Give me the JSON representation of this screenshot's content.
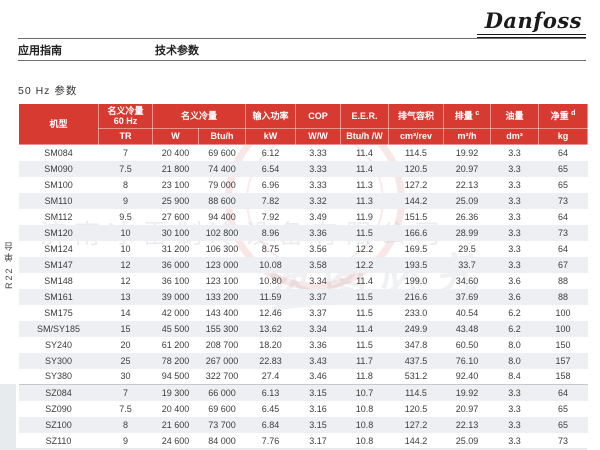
{
  "page": {
    "logo": "Danfoss",
    "nav_left": "应用指南",
    "nav_right": "技术参数",
    "section_title": "50 Hz 参数"
  },
  "watermark": {
    "company": "济南冰雷制冷设备有限公司",
    "warning": "盗图必究",
    "phone": "400-031-5128"
  },
  "table": {
    "header": {
      "model": "机型",
      "capacity60_line1": "名义冷量",
      "capacity60_line2": "60 Hz",
      "capacity": "名义冷量",
      "power": "输入功率",
      "cop": "COP",
      "eer": "E.E.R.",
      "swept_volume": "排气容积",
      "displacement": "排量",
      "displacement_note": "c",
      "oil": "油量",
      "weight": "净重",
      "weight_note": "d",
      "units": [
        "TR",
        "W",
        "Btu/h",
        "kW",
        "W/W",
        "Btu/h /W",
        "cm³/rev",
        "m³/h",
        "dm³",
        "kg"
      ]
    },
    "sections": [
      {
        "label": "R22 单台",
        "rows": [
          [
            "SM084",
            "7",
            "20 400",
            "69 600",
            "6.12",
            "3.33",
            "11.4",
            "114.5",
            "19.92",
            "3.3",
            "64"
          ],
          [
            "SM090",
            "7.5",
            "21 800",
            "74 400",
            "6.54",
            "3.33",
            "11.4",
            "120.5",
            "20.97",
            "3.3",
            "65"
          ],
          [
            "SM100",
            "8",
            "23 100",
            "79 000",
            "6.96",
            "3.33",
            "11.3",
            "127.2",
            "22.13",
            "3.3",
            "65"
          ],
          [
            "SM110",
            "9",
            "25 900",
            "88 600",
            "7.82",
            "3.32",
            "11.3",
            "144.2",
            "25.09",
            "3.3",
            "73"
          ],
          [
            "SM112",
            "9.5",
            "27 600",
            "94 400",
            "7.92",
            "3.49",
            "11.9",
            "151.5",
            "26.36",
            "3.3",
            "64"
          ],
          [
            "SM120",
            "10",
            "30 100",
            "102 800",
            "8.96",
            "3.36",
            "11.5",
            "166.6",
            "28.99",
            "3.3",
            "73"
          ],
          [
            "SM124",
            "10",
            "31 200",
            "106 300",
            "8.75",
            "3.56",
            "12.2",
            "169.5",
            "29.5",
            "3.3",
            "64"
          ],
          [
            "SM147",
            "12",
            "36 000",
            "123 000",
            "10.08",
            "3.58",
            "12.2",
            "193.5",
            "33.7",
            "3.3",
            "67"
          ],
          [
            "SM148",
            "12",
            "36 100",
            "123 100",
            "10.80",
            "3.34",
            "11.4",
            "199.0",
            "34.60",
            "3.6",
            "88"
          ],
          [
            "SM161",
            "13",
            "39 000",
            "133 200",
            "11.59",
            "3.37",
            "11.5",
            "216.6",
            "37.69",
            "3.6",
            "88"
          ],
          [
            "SM175",
            "14",
            "42 000",
            "143 400",
            "12.46",
            "3.37",
            "11.5",
            "233.0",
            "40.54",
            "6.2",
            "100"
          ],
          [
            "SM/SY185",
            "15",
            "45 500",
            "155 300",
            "13.62",
            "3.34",
            "11.4",
            "249.9",
            "43.48",
            "6.2",
            "100"
          ],
          [
            "SY240",
            "20",
            "61 200",
            "208 700",
            "18.20",
            "3.36",
            "11.5",
            "347.8",
            "60.50",
            "8.0",
            "150"
          ],
          [
            "SY300",
            "25",
            "78 200",
            "267 000",
            "22.83",
            "3.43",
            "11.7",
            "437.5",
            "76.10",
            "8.0",
            "157"
          ],
          [
            "SY380",
            "30",
            "94 500",
            "322 700",
            "27.4",
            "3.46",
            "11.8",
            "531.2",
            "92.40",
            "8.4",
            "158"
          ]
        ]
      },
      {
        "label": "",
        "rows": [
          [
            "SZ084",
            "7",
            "19 300",
            "66 000",
            "6.13",
            "3.15",
            "10.7",
            "114.5",
            "19.92",
            "3.3",
            "64"
          ],
          [
            "SZ090",
            "7.5",
            "20 400",
            "69 600",
            "6.45",
            "3.16",
            "10.8",
            "120.5",
            "20.97",
            "3.3",
            "65"
          ],
          [
            "SZ100",
            "8",
            "21 600",
            "73 700",
            "6.84",
            "3.15",
            "10.8",
            "127.2",
            "22.13",
            "3.3",
            "65"
          ],
          [
            "SZ110",
            "9",
            "24 600",
            "84 000",
            "7.76",
            "3.17",
            "10.8",
            "144.2",
            "25.09",
            "3.3",
            "73"
          ]
        ]
      }
    ]
  }
}
